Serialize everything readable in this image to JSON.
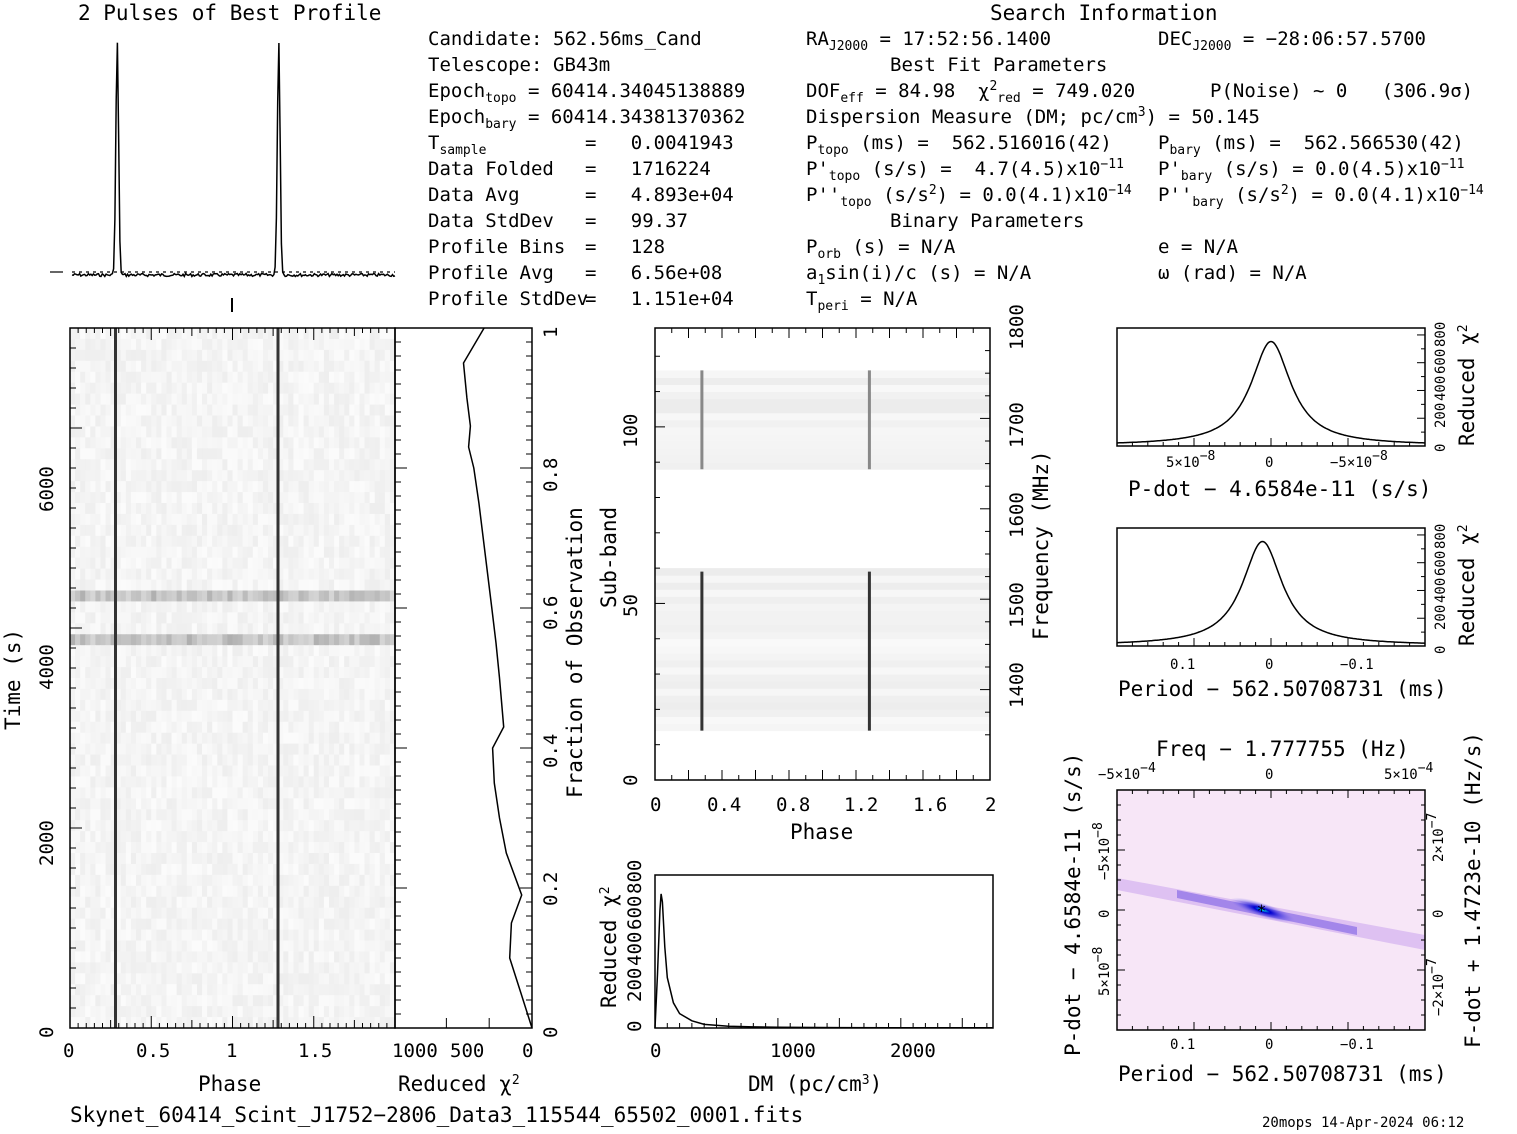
{
  "profile": {
    "title": "2 Pulses of Best Profile",
    "chart_data": {
      "type": "line",
      "bins": 128,
      "x": [
        0,
        2
      ],
      "peaks_phase": [
        0.28,
        1.28
      ],
      "baseline": 0.03
    }
  },
  "search_info": {
    "title": "Search Information",
    "candidate": {
      "label": "Candidate:",
      "value": "562.56ms_Cand"
    },
    "telescope": {
      "label": "Telescope:",
      "value": "GB43m"
    },
    "epoch_topo": {
      "label": "Epoch",
      "sub": "topo",
      "value": "= 60414.34045138889"
    },
    "epoch_bary": {
      "label": "Epoch",
      "sub": "bary",
      "value": "= 60414.34381370362"
    },
    "t_sample": {
      "label": "T",
      "sub": "sample",
      "value": "=   0.0041943"
    },
    "data_folded": {
      "label": "Data Folded",
      "value": "=   1716224"
    },
    "data_avg": {
      "label": "Data Avg",
      "value": "=   4.893e+04"
    },
    "data_stddev": {
      "label": "Data StdDev",
      "value": "=   99.37"
    },
    "profile_bins": {
      "label": "Profile Bins",
      "value": "=   128"
    },
    "profile_avg": {
      "label": "Profile Avg",
      "value": "=   6.56e+08"
    },
    "profile_stddev": {
      "label": "Profile StdDev",
      "value": "=   1.151e+04"
    },
    "ra": {
      "label": "RA",
      "sub": "J2000",
      "value": "= 17:52:56.1400"
    },
    "dec": {
      "label": "DEC",
      "sub": "J2000",
      "value": "= −28:06:57.5700"
    },
    "best_fit_title": "Best Fit Parameters",
    "dof": {
      "label": "DOF",
      "sub": "eff",
      "value": "= 84.98"
    },
    "chi2": {
      "label": "χ",
      "sup": "2",
      "sub": "red",
      "value": "= 749.020"
    },
    "pnoise": "P(Noise) ~ 0   (306.9σ)",
    "dm_line": {
      "pre": "Dispersion Measure (DM; pc/cm",
      "sup": "3",
      "post": ") = 50.145"
    },
    "ptopo": {
      "label": "P",
      "sub": "topo",
      "value": " (ms) =  562.516016(42)"
    },
    "pbary": {
      "label": "P",
      "sub": "bary",
      "value": " (ms) =  562.566530(42)"
    },
    "pdtopo": {
      "label": "P'",
      "sub": "topo",
      "value": " (s/s) =  4.7(4.5)x10",
      "sup": "−11"
    },
    "pdbary": {
      "label": "P'",
      "sub": "bary",
      "value": " (s/s) = 0.0(4.5)x10",
      "sup": "−11"
    },
    "pddtopo": {
      "label": "P''",
      "sub": "topo",
      "value": " (s/s",
      "sup1": "2",
      "value2": ") = 0.0(4.1)x10",
      "sup": "−14"
    },
    "pddbary": {
      "label": "P''",
      "sub": "bary",
      "value": " (s/s",
      "sup1": "2",
      "value2": ") = 0.0(4.1)x10",
      "sup": "−14"
    },
    "binary_title": "Binary Parameters",
    "porb": {
      "label": "P",
      "sub": "orb",
      "value": " (s) = N/A"
    },
    "ecc": "e = N/A",
    "a1sini": {
      "pre": "a",
      "sub": "1",
      "post": "sin(i)/c (s) = N/A"
    },
    "omega": "ω (rad) = N/A",
    "tperi": {
      "label": "T",
      "sub": "peri",
      "value": " = N/A"
    }
  },
  "time_phase": {
    "xlabel": "Phase",
    "ylabel": "Time (s)",
    "xticks": [
      "0",
      "0.5",
      "1",
      "1.5"
    ],
    "yticks": [
      "0",
      "2000",
      "4000",
      "6000"
    ],
    "chart_data": {
      "type": "heatmap",
      "xlim": [
        0,
        2
      ],
      "ylim": [
        0,
        7000
      ],
      "pulse_phases": [
        0.28,
        1.28
      ],
      "bright_rows_time": [
        3800,
        4300
      ]
    }
  },
  "redchi_time": {
    "xlabel": "Reduced",
    "xlabel_sup": "2",
    "ylabel": "Fraction of Observation",
    "xticks": [
      "1000",
      "500",
      "0"
    ],
    "yticks": [
      "0",
      "0.2",
      "0.4",
      "0.6",
      "0.8",
      "1"
    ],
    "chart_data": {
      "type": "line",
      "xlim": [
        1600,
        0
      ],
      "fraction": [
        0,
        0.05,
        0.1,
        0.15,
        0.19,
        0.25,
        0.3,
        0.35,
        0.4,
        0.43,
        0.5,
        0.55,
        0.6,
        0.65,
        0.7,
        0.75,
        0.8,
        0.83,
        0.86,
        0.9,
        0.95,
        1.0
      ],
      "redchi2": [
        0,
        130,
        260,
        240,
        120,
        300,
        380,
        440,
        460,
        330,
        380,
        420,
        470,
        520,
        570,
        620,
        680,
        740,
        720,
        760,
        800,
        560
      ]
    }
  },
  "subband": {
    "xlabel": "Phase",
    "ylabel": "Sub-band",
    "ylabel2": "Frequency (MHz)",
    "xticks": [
      "0",
      "0.4",
      "0.8",
      "1.2",
      "1.6",
      "2"
    ],
    "yticks": [
      "0",
      "50",
      "100"
    ],
    "yticks2": [
      "1400",
      "1500",
      "1600",
      "1700",
      "1800"
    ],
    "chart_data": {
      "type": "heatmap",
      "xlim": [
        0,
        2
      ],
      "ylim": [
        0,
        128
      ],
      "freq_lim": [
        1300,
        1800
      ],
      "pulse_phases": [
        0.28,
        1.28
      ],
      "active_bands": [
        [
          14,
          59
        ],
        [
          88,
          116
        ]
      ]
    }
  },
  "dm_curve": {
    "xlabel": "DM (pc/cm",
    "xlabel_sup": "3",
    "xlabel_post": ")",
    "ylabel": "Reduced",
    "ylabel_sup": "2",
    "xticks": [
      "0",
      "1000",
      "2000"
    ],
    "yticks": [
      "0",
      "200",
      "400",
      "600",
      "800"
    ],
    "chart_data": {
      "type": "line",
      "xlim": [
        0,
        2750
      ],
      "ylim": [
        0,
        850
      ],
      "dm": [
        0,
        20,
        40,
        50,
        60,
        80,
        100,
        150,
        200,
        300,
        400,
        600,
        800,
        1000,
        1500,
        2000,
        2500,
        2750
      ],
      "redchi2": [
        0,
        300,
        650,
        745,
        700,
        450,
        280,
        140,
        80,
        40,
        20,
        10,
        6,
        4,
        2,
        1,
        1,
        1
      ]
    }
  },
  "pdot_curve": {
    "xlabel": "P-dot − 4.6584e-11 (s/s)",
    "ylabel": "Reduced",
    "ylabel_sup": "2",
    "xticks": [
      "5×10",
      "0",
      "−5×10"
    ],
    "xticks_exp": "−8",
    "yticks": [
      "0",
      "200",
      "400",
      "600",
      "800"
    ],
    "chart_data": {
      "type": "line",
      "xlim": [
        1e-08,
        -1e-08
      ],
      "ylim": [
        0,
        850
      ],
      "peak_x": 0,
      "peak_y": 749
    }
  },
  "period_curve": {
    "xlabel": "Period − 562.50708731 (ms)",
    "ylabel": "Reduced",
    "ylabel_sup": "2",
    "xticks": [
      "0.1",
      "0",
      "−0.1"
    ],
    "yticks": [
      "0",
      "200",
      "400",
      "600",
      "800"
    ],
    "chart_data": {
      "type": "line",
      "xlim": [
        0.18,
        -0.18
      ],
      "ylim": [
        0,
        850
      ],
      "peak_x": 0.01,
      "peak_y": 749
    }
  },
  "ppdot": {
    "top_label": "Freq − 1.777755 (Hz)",
    "xlabel": "Period − 562.50708731 (ms)",
    "ylabel": "P-dot − 4.6584e-11 (s/s)",
    "ylabel2": "F-dot + 1.4723e-10 (Hz/s)",
    "xticks": [
      "0.1",
      "0",
      "−0.1"
    ],
    "top_ticks": [
      "−5×10",
      "0",
      "5×10"
    ],
    "top_exp": "−4",
    "yticks": [
      "5×10",
      "0",
      "−5×10"
    ],
    "yticks_exp": "−8",
    "yticks2": [
      "−2×10",
      "0",
      "2×10"
    ],
    "yticks2_exp": "−7",
    "chart_data": {
      "type": "heatmap",
      "xlim": [
        0.18,
        -0.18
      ],
      "best": [
        0.01,
        0
      ]
    },
    "colors": {
      "bg": "#f7e6f7",
      "band": "#5a3fe0",
      "peak": "#00e0e0"
    }
  },
  "footer": {
    "filename": "Skynet_60414_Scint_J1752−2806_Data3_115544_65502_0001.fits",
    "stamp": "20mops 14-Apr-2024 06:12"
  }
}
